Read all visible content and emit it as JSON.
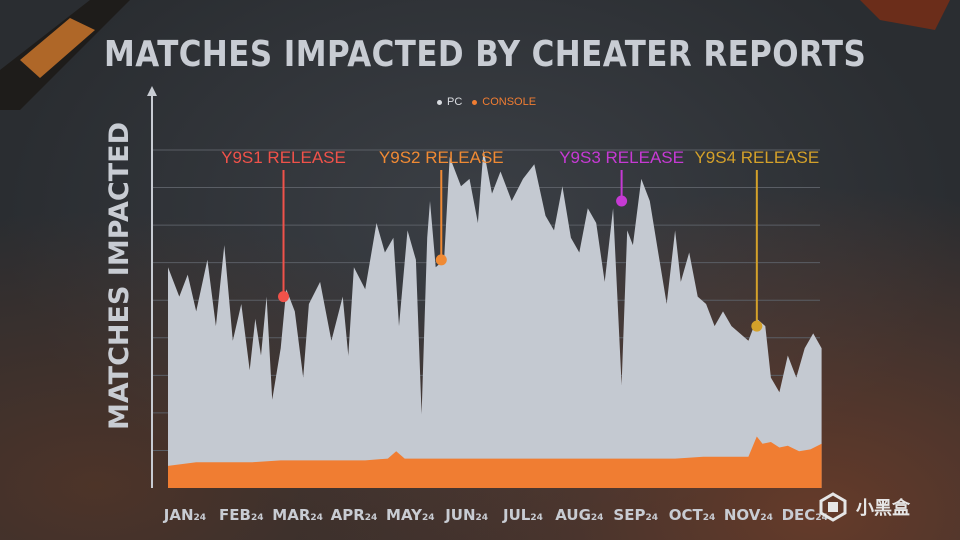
{
  "chart_data": {
    "type": "area",
    "title": "MATCHES IMPACTED BY CHEATER REPORTS",
    "ylabel": "MATCHES IMPACTED",
    "xlabel": "",
    "legend_position": "top-center",
    "grid": true,
    "ylim": [
      0,
      100
    ],
    "x_ticks": [
      {
        "label": "JAN",
        "suffix": "24"
      },
      {
        "label": "FEB",
        "suffix": "24"
      },
      {
        "label": "MAR",
        "suffix": "24"
      },
      {
        "label": "APR",
        "suffix": "24"
      },
      {
        "label": "MAY",
        "suffix": "24"
      },
      {
        "label": "JUN",
        "suffix": "24"
      },
      {
        "label": "JUL",
        "suffix": "24"
      },
      {
        "label": "AUG",
        "suffix": "24"
      },
      {
        "label": "SEP",
        "suffix": "24"
      },
      {
        "label": "OCT",
        "suffix": "24"
      },
      {
        "label": "NOV",
        "suffix": "24"
      },
      {
        "label": "DEC",
        "suffix": "24"
      }
    ],
    "series": [
      {
        "name": "PC",
        "color": "#c4c9d1",
        "x": [
          0,
          0.2,
          0.35,
          0.5,
          0.7,
          0.85,
          1.0,
          1.15,
          1.3,
          1.45,
          1.55,
          1.65,
          1.75,
          1.85,
          2.0,
          2.1,
          2.25,
          2.4,
          2.5,
          2.7,
          2.9,
          3.1,
          3.2,
          3.3,
          3.5,
          3.7,
          3.85,
          4.0,
          4.1,
          4.25,
          4.4,
          4.5,
          4.6,
          4.65,
          4.75,
          4.9,
          5.0,
          5.2,
          5.35,
          5.5,
          5.6,
          5.75,
          5.9,
          6.1,
          6.3,
          6.5,
          6.7,
          6.85,
          7.0,
          7.15,
          7.3,
          7.45,
          7.6,
          7.75,
          7.9,
          8.05,
          8.15,
          8.25,
          8.4,
          8.55,
          8.7,
          8.85,
          9.0,
          9.1,
          9.25,
          9.4,
          9.55,
          9.7,
          9.85,
          10.0,
          10.15,
          10.3,
          10.45,
          10.6,
          10.7,
          10.85,
          11.0,
          11.15,
          11.3,
          11.45,
          11.6
        ],
        "values": [
          60,
          52,
          58,
          48,
          62,
          44,
          66,
          40,
          50,
          32,
          46,
          36,
          52,
          24,
          38,
          54,
          48,
          30,
          50,
          56,
          40,
          52,
          36,
          60,
          54,
          72,
          64,
          68,
          44,
          70,
          62,
          20,
          68,
          78,
          60,
          62,
          90,
          82,
          84,
          72,
          92,
          80,
          86,
          78,
          84,
          88,
          74,
          70,
          82,
          68,
          64,
          76,
          72,
          56,
          76,
          28,
          70,
          66,
          84,
          78,
          64,
          50,
          70,
          56,
          64,
          52,
          50,
          44,
          48,
          44,
          42,
          40,
          46,
          44,
          30,
          26,
          36,
          30,
          38,
          42,
          38
        ]
      },
      {
        "name": "CONSOLE",
        "color": "#f07d32",
        "x": [
          0,
          0.5,
          1.0,
          1.5,
          2.0,
          2.5,
          3.0,
          3.5,
          3.9,
          4.05,
          4.2,
          4.6,
          5.0,
          5.5,
          6.0,
          6.5,
          7.0,
          7.5,
          8.0,
          8.5,
          9.0,
          9.5,
          10.0,
          10.3,
          10.45,
          10.55,
          10.7,
          10.85,
          11.0,
          11.2,
          11.4,
          11.6
        ],
        "values": [
          6,
          7,
          7,
          7,
          7.5,
          7.5,
          7.5,
          7.5,
          8,
          10,
          8,
          8,
          8,
          8,
          8,
          8,
          8,
          8,
          8,
          8,
          8,
          8.5,
          8.5,
          8.5,
          14,
          12,
          12.5,
          11,
          11.5,
          10,
          10.5,
          12
        ]
      }
    ],
    "annotations": [
      {
        "label": "Y9S1 RELEASE",
        "color": "#f0524a",
        "x": 2.05,
        "value": 52
      },
      {
        "label": "Y9S2 RELEASE",
        "color": "#f08a34",
        "x": 4.85,
        "value": 62
      },
      {
        "label": "Y9S3 RELEASE",
        "color": "#c63ad4",
        "x": 8.05,
        "value": 78
      },
      {
        "label": "Y9S4 RELEASE",
        "color": "#d4a12a",
        "x": 10.45,
        "value": 44
      }
    ]
  },
  "watermark": {
    "text": "小黑盒"
  }
}
